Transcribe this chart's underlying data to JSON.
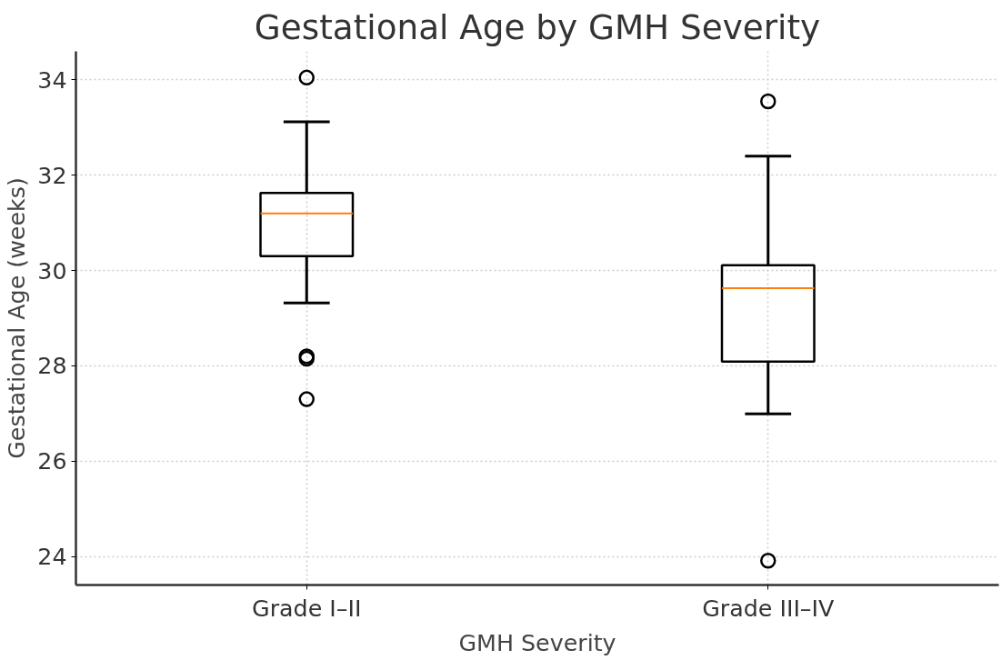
{
  "chart_data": {
    "type": "box",
    "title": "Gestational Age by GMH Severity",
    "xlabel": "GMH Severity",
    "ylabel": "Gestational Age (weeks)",
    "categories": [
      "Grade I–II",
      "Grade III–IV"
    ],
    "boxes": [
      {
        "low": 29.32,
        "q1": 30.3,
        "median": 31.2,
        "q3": 31.63,
        "high": 33.12,
        "outliers": [
          34.05,
          28.2,
          28.15,
          27.3
        ]
      },
      {
        "low": 26.99,
        "q1": 28.09,
        "median": 29.63,
        "q3": 30.11,
        "high": 32.4,
        "outliers": [
          33.55,
          23.91
        ]
      }
    ],
    "ylim": [
      23.4,
      34.6
    ],
    "yticks": [
      24,
      26,
      28,
      30,
      32,
      34
    ],
    "grid": true
  }
}
